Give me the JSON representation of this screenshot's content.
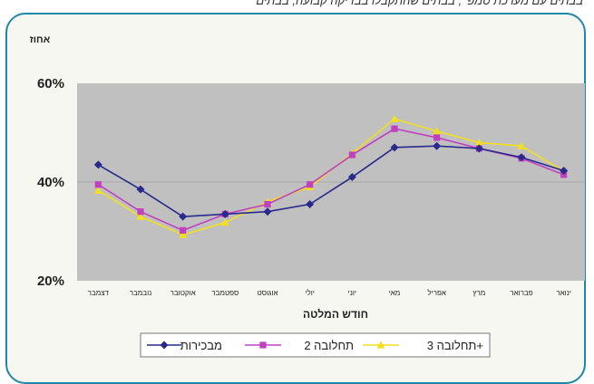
{
  "top_text": "בבתים עם מערכת טמפ' , בבתים שהתקבלו בבדיקה קבועה, בבתים",
  "chart_data": {
    "type": "line",
    "ylabel": "אחוז",
    "xlabel": "חודש המלטה",
    "ylim": [
      20,
      60
    ],
    "yticks": [
      "20%",
      "40%",
      "60%"
    ],
    "ytick_values": [
      20,
      40,
      60
    ],
    "grid": "horizontal",
    "legend_position": "bottom",
    "categories": [
      "ינואר",
      "פברואר",
      "מרץ",
      "אפריל",
      "מאי",
      "יוני",
      "יולי",
      "אוגוסט",
      "ספטמבר",
      "אוקטובר",
      "נובמבר",
      "דצמבר"
    ],
    "series": [
      {
        "name": "מבכירות",
        "color": "#2a2a8c",
        "marker": "diamond",
        "values": [
          42.3,
          45.0,
          46.8,
          47.3,
          47.0,
          41.0,
          35.5,
          34.0,
          33.5,
          33.0,
          38.5,
          43.5
        ]
      },
      {
        "name": "תחלובה 2",
        "color": "#c040c0",
        "marker": "square",
        "values": [
          41.5,
          44.8,
          46.8,
          49.0,
          50.8,
          45.5,
          39.5,
          35.5,
          33.5,
          30.2,
          34.0,
          39.5
        ]
      },
      {
        "name": "תחלובה 3+",
        "color": "#f0e020",
        "marker": "triangle",
        "values": [
          42.2,
          47.3,
          48.0,
          50.3,
          52.8,
          45.8,
          39.0,
          36.0,
          31.8,
          29.3,
          33.0,
          38.3
        ]
      }
    ]
  }
}
